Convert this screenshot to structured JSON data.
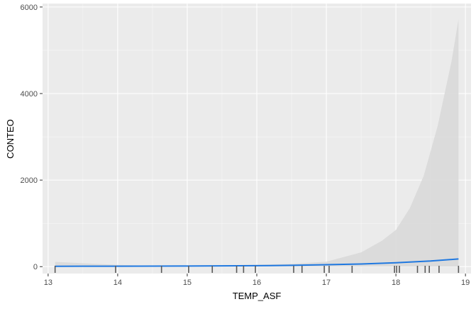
{
  "chart_data": {
    "type": "line",
    "xlabel": "TEMP_ASF",
    "ylabel": "CONTEO",
    "xlim": [
      12.92,
      19.08
    ],
    "ylim": [
      -160,
      6080
    ],
    "x_ticks": [
      13,
      14,
      15,
      16,
      17,
      18,
      19
    ],
    "y_ticks": [
      0,
      2000,
      4000,
      6000
    ],
    "grid": true,
    "series": [
      {
        "type": "line",
        "color": "#1f78e0",
        "x": [
          13.1,
          13.5,
          14.0,
          14.5,
          15.0,
          15.5,
          16.0,
          16.5,
          17.0,
          17.5,
          18.0,
          18.5,
          18.9
        ],
        "y": [
          8,
          9,
          10,
          12,
          14,
          18,
          22,
          30,
          45,
          62,
          90,
          130,
          178
        ]
      },
      {
        "type": "area",
        "name_hint": "confidence band",
        "color": "#d9d9d9",
        "x": [
          13.1,
          13.5,
          14.0,
          14.5,
          15.0,
          15.5,
          16.0,
          16.5,
          17.0,
          17.5,
          17.8,
          18.0,
          18.2,
          18.4,
          18.6,
          18.8,
          18.9
        ],
        "lower": [
          0,
          0,
          0,
          0,
          0,
          0,
          0,
          0,
          0,
          0,
          0,
          0,
          0,
          0,
          0,
          0,
          0
        ],
        "upper": [
          110,
          80,
          40,
          20,
          22,
          30,
          45,
          65,
          115,
          330,
          600,
          850,
          1350,
          2100,
          3250,
          4750,
          5720
        ]
      }
    ],
    "rug_x": [
      13.1,
      13.97,
      14.63,
      15.02,
      15.36,
      15.71,
      15.81,
      15.98,
      16.53,
      16.65,
      16.97,
      17.04,
      17.37,
      17.98,
      18.01,
      18.05,
      18.31,
      18.42,
      18.48,
      18.62,
      18.9
    ]
  },
  "colors": {
    "panel_background": "#ebebeb",
    "grid_major": "#ffffff",
    "line": "#1f78e0",
    "band": "#d9d9d9",
    "rug": "#595959"
  }
}
